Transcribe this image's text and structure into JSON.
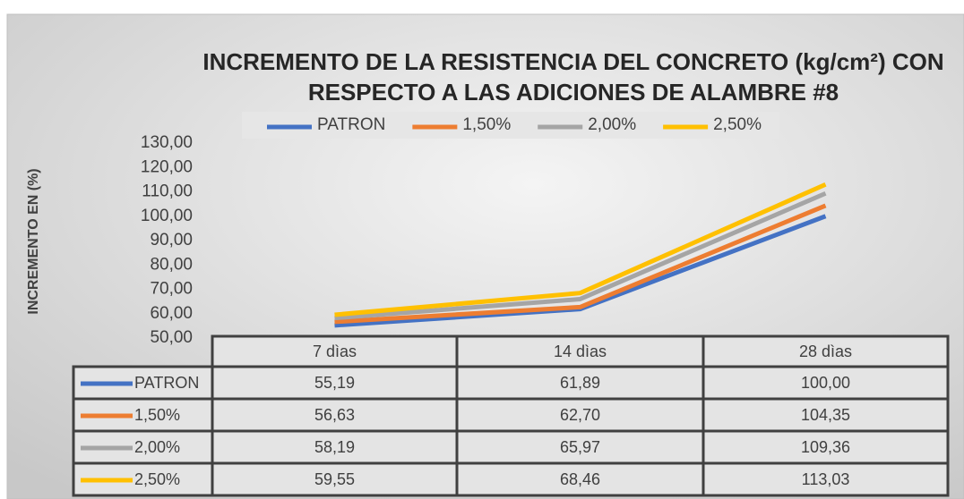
{
  "chart_data": {
    "type": "line",
    "title": "INCREMENTO DE LA RESISTENCIA DEL CONCRETO (kg/cm²) CON RESPECTO A LAS ADICIONES DE ALAMBRE #8",
    "y_label": "INCREMENTO EN (%)",
    "categories": [
      "7 dìas",
      "14 dìas",
      "28 dìas"
    ],
    "series": [
      {
        "name": "PATRON",
        "color": "#4472c4",
        "values": [
          55.19,
          61.89,
          100.0
        ],
        "value_labels": [
          "55,19",
          "61,89",
          "100,00"
        ]
      },
      {
        "name": "1,50%",
        "color": "#ed7d31",
        "values": [
          56.63,
          62.7,
          104.35
        ],
        "value_labels": [
          "56,63",
          "62,70",
          "104,35"
        ]
      },
      {
        "name": "2,00%",
        "color": "#a5a5a5",
        "values": [
          58.19,
          65.97,
          109.36
        ],
        "value_labels": [
          "58,19",
          "65,97",
          "109,36"
        ]
      },
      {
        "name": "2,50%",
        "color": "#ffc000",
        "values": [
          59.55,
          68.46,
          113.03
        ],
        "value_labels": [
          "59,55",
          "68,46",
          "113,03"
        ]
      }
    ],
    "ylim": [
      50,
      130
    ],
    "yticks": [
      {
        "value": 50,
        "label": "50,00"
      },
      {
        "value": 60,
        "label": "60,00"
      },
      {
        "value": 70,
        "label": "70,00"
      },
      {
        "value": 80,
        "label": "80,00"
      },
      {
        "value": 90,
        "label": "90,00"
      },
      {
        "value": 100,
        "label": "100,00"
      },
      {
        "value": 110,
        "label": "110,00"
      },
      {
        "value": 120,
        "label": "120,00"
      },
      {
        "value": 130,
        "label": "130,00"
      }
    ],
    "legend": "top"
  }
}
